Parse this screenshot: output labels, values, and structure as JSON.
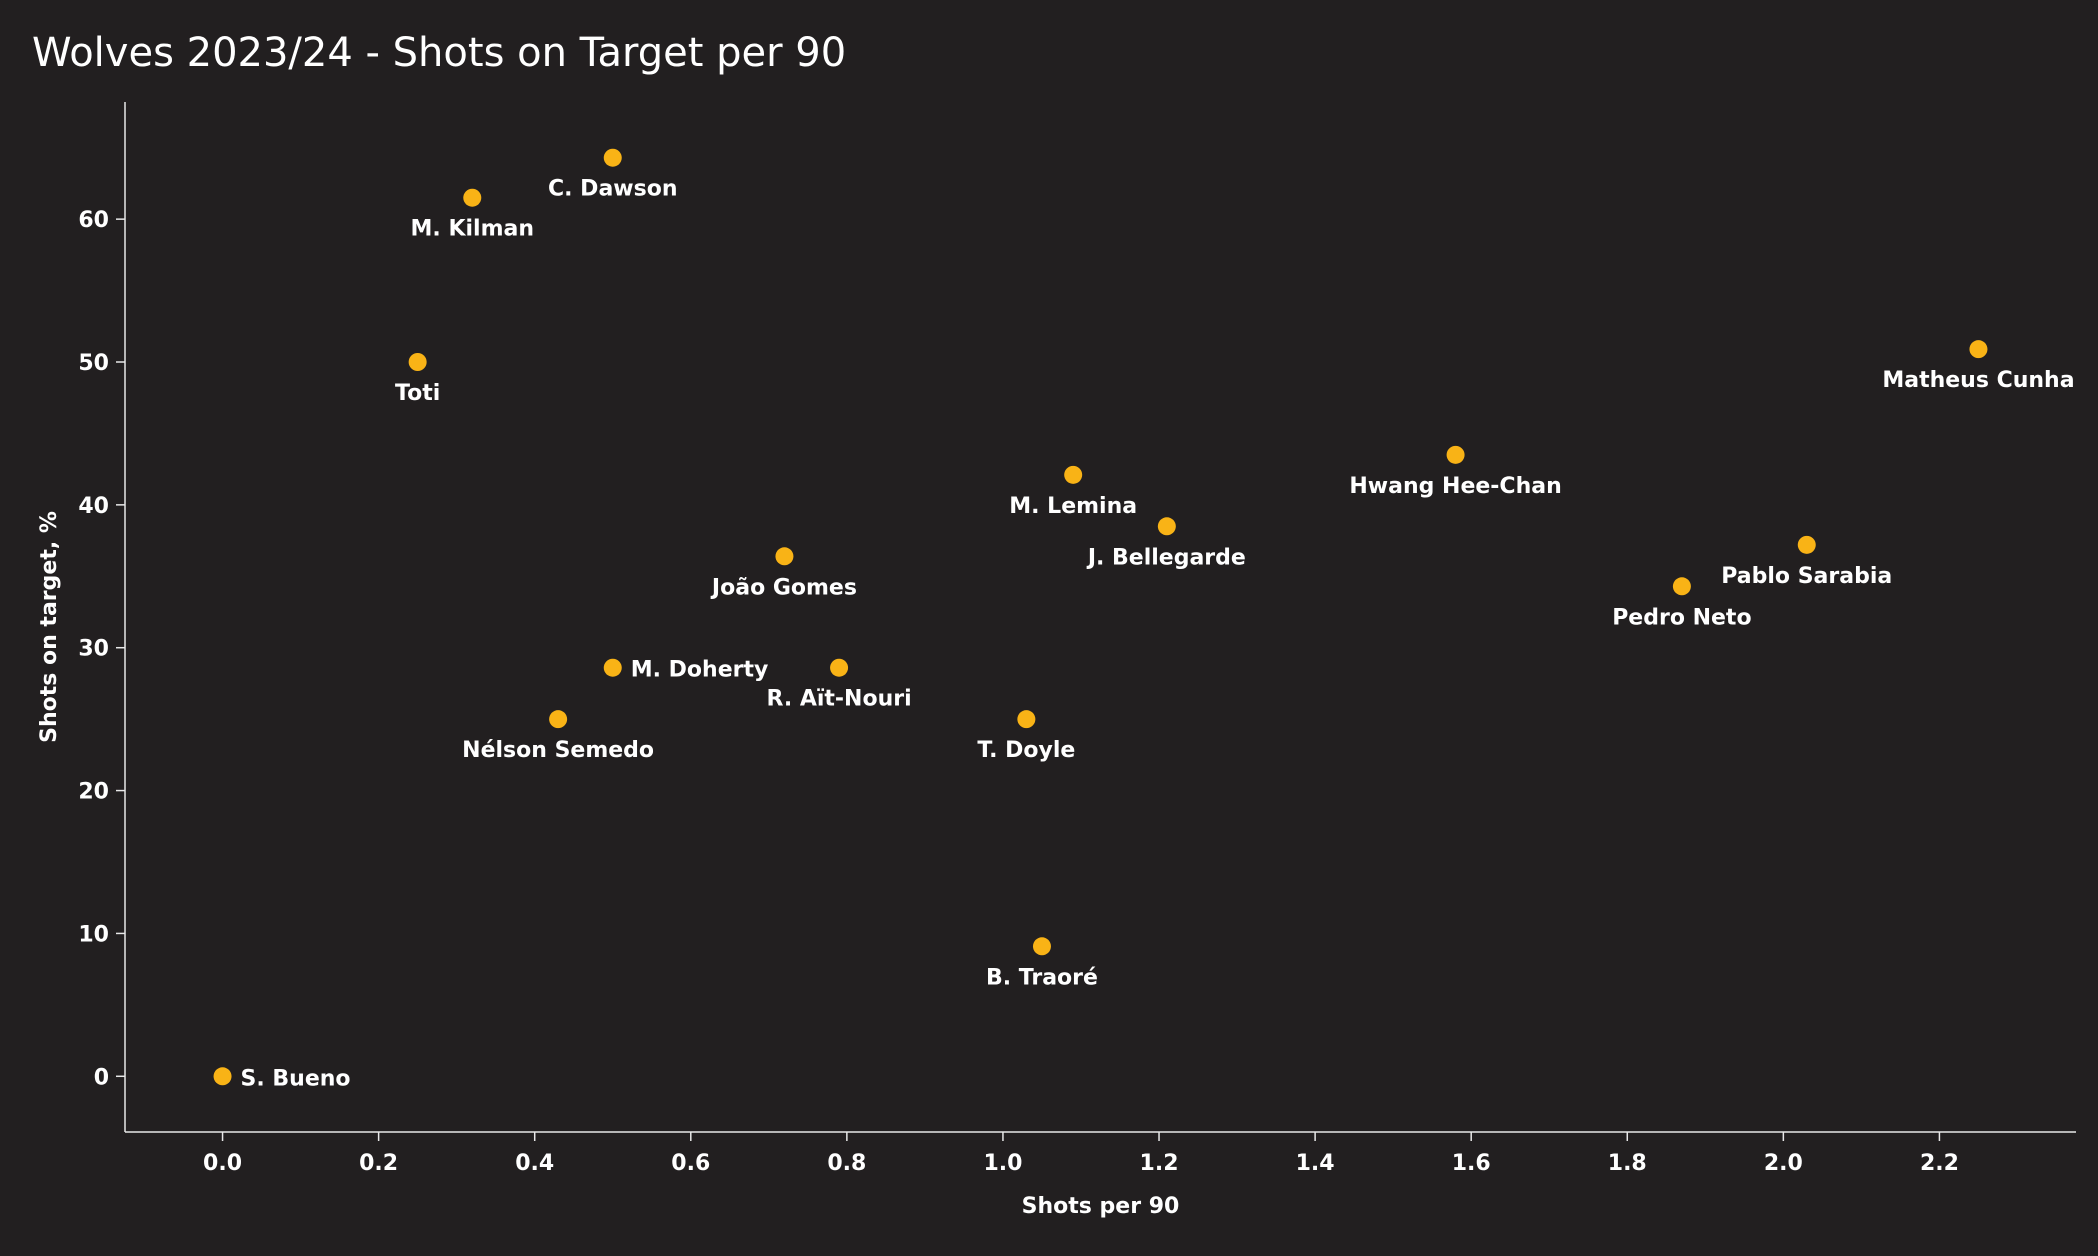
{
  "chart_data": {
    "type": "scatter",
    "title": "Wolves 2023/24 - Shots on Target per 90",
    "xlabel": "Shots per 90",
    "ylabel": "Shots on target, %",
    "xlim": [
      -0.125,
      2.375
    ],
    "ylim": [
      -3.9,
      68.2
    ],
    "xticks": [
      "0.0",
      "0.2",
      "0.4",
      "0.6",
      "0.8",
      "1.0",
      "1.2",
      "1.4",
      "1.6",
      "1.8",
      "2.0",
      "2.2"
    ],
    "yticks": [
      "0",
      "10",
      "20",
      "30",
      "40",
      "50",
      "60"
    ],
    "grid": false,
    "marker_color": "#f9b316",
    "background_color": "#221f20",
    "points": [
      {
        "label": "S. Bueno",
        "x": 0.0,
        "y": 0.0,
        "label_pos": "right"
      },
      {
        "label": "Toti",
        "x": 0.25,
        "y": 50.0,
        "label_pos": "below"
      },
      {
        "label": "M. Kilman",
        "x": 0.32,
        "y": 61.5,
        "label_pos": "below"
      },
      {
        "label": "C. Dawson",
        "x": 0.5,
        "y": 64.3,
        "label_pos": "below"
      },
      {
        "label": "Nélson Semedo",
        "x": 0.43,
        "y": 25.0,
        "label_pos": "below"
      },
      {
        "label": "M. Doherty",
        "x": 0.5,
        "y": 28.6,
        "label_pos": "right"
      },
      {
        "label": "João Gomes",
        "x": 0.72,
        "y": 36.4,
        "label_pos": "below"
      },
      {
        "label": "R. Aït-Nouri",
        "x": 0.79,
        "y": 28.6,
        "label_pos": "below"
      },
      {
        "label": "T. Doyle",
        "x": 1.03,
        "y": 25.0,
        "label_pos": "below"
      },
      {
        "label": "B. Traoré",
        "x": 1.05,
        "y": 9.1,
        "label_pos": "below"
      },
      {
        "label": "M. Lemina",
        "x": 1.09,
        "y": 42.1,
        "label_pos": "below"
      },
      {
        "label": "J. Bellegarde",
        "x": 1.21,
        "y": 38.5,
        "label_pos": "below"
      },
      {
        "label": "Hwang Hee-Chan",
        "x": 1.58,
        "y": 43.5,
        "label_pos": "below"
      },
      {
        "label": "Pedro Neto",
        "x": 1.87,
        "y": 34.3,
        "label_pos": "below"
      },
      {
        "label": "Pablo Sarabia",
        "x": 2.03,
        "y": 37.2,
        "label_pos": "below"
      },
      {
        "label": "Matheus Cunha",
        "x": 2.25,
        "y": 50.9,
        "label_pos": "below"
      }
    ]
  }
}
